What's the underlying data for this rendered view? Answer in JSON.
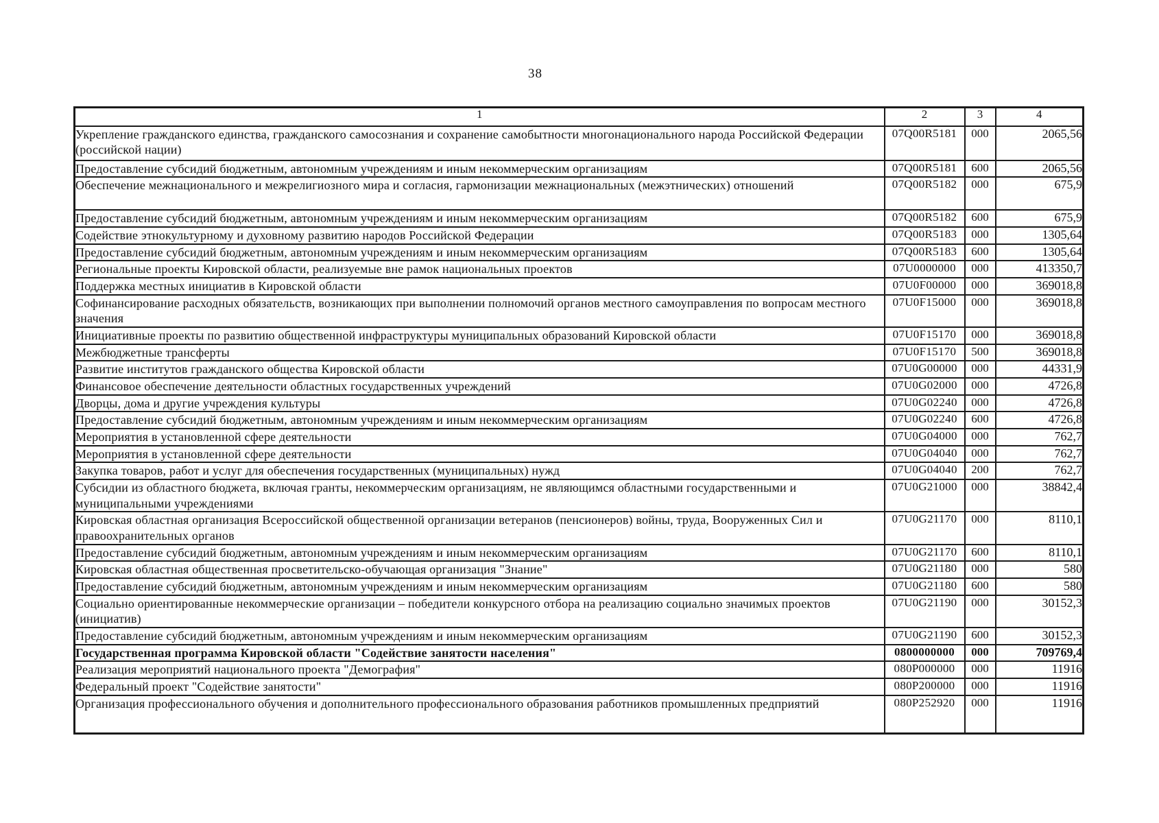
{
  "page_number": "38",
  "table": {
    "headers": [
      "1",
      "2",
      "3",
      "4"
    ],
    "rows": [
      {
        "name": "Укрепление гражданского единства, гражданского самосознания и сохранение самобытности многонационального народа Российской Федерации (российской нации)",
        "code": "07Q00R5181",
        "vr": "000",
        "amount": "2065,56"
      },
      {
        "name": "Предоставление субсидий бюджетным, автономным учреждениям и иным некоммерческим организациям",
        "code": "07Q00R5181",
        "vr": "600",
        "amount": "2065,56"
      },
      {
        "name": "Обеспечение межнационального и межрелигиозного мира и согласия, гармонизации межнациональных (межэтнических) отношений",
        "code": "07Q00R5182",
        "vr": "000",
        "amount": "675,9"
      },
      {
        "name": "Предоставление субсидий бюджетным, автономным учреждениям и иным некоммерческим организациям",
        "code": "07Q00R5182",
        "vr": "600",
        "amount": "675,9"
      },
      {
        "name": "Содействие этнокультурному и духовному развитию народов Российской Федерации",
        "code": "07Q00R5183",
        "vr": "000",
        "amount": "1305,64"
      },
      {
        "name": "Предоставление субсидий бюджетным, автономным учреждениям и иным некоммерческим организациям",
        "code": "07Q00R5183",
        "vr": "600",
        "amount": "1305,64"
      },
      {
        "name": "Региональные проекты Кировской области, реализуемые вне рамок национальных проектов",
        "code": "07U0000000",
        "vr": "000",
        "amount": "413350,7"
      },
      {
        "name": "Поддержка местных инициатив в Кировской области",
        "code": "07U0F00000",
        "vr": "000",
        "amount": "369018,8"
      },
      {
        "name": "Софинансирование расходных обязательств, возникающих при выполнении полномочий органов местного самоуправления по вопросам местного значения",
        "code": "07U0F15000",
        "vr": "000",
        "amount": "369018,8"
      },
      {
        "name": "Инициативные проекты по развитию общественной инфраструктуры муниципальных образований Кировской области",
        "code": "07U0F15170",
        "vr": "000",
        "amount": "369018,8"
      },
      {
        "name": "Межбюджетные трансферты",
        "code": "07U0F15170",
        "vr": "500",
        "amount": "369018,8"
      },
      {
        "name": "Развитие институтов гражданского общества Кировской области",
        "code": "07U0G00000",
        "vr": "000",
        "amount": "44331,9"
      },
      {
        "name": "Финансовое обеспечение деятельности областных государственных учреждений",
        "code": "07U0G02000",
        "vr": "000",
        "amount": "4726,8"
      },
      {
        "name": "Дворцы, дома и другие учреждения культуры",
        "code": "07U0G02240",
        "vr": "000",
        "amount": "4726,8"
      },
      {
        "name": "Предоставление субсидий бюджетным, автономным учреждениям и иным некоммерческим организациям",
        "code": "07U0G02240",
        "vr": "600",
        "amount": "4726,8"
      },
      {
        "name": "Мероприятия в установленной сфере деятельности",
        "code": "07U0G04000",
        "vr": "000",
        "amount": "762,7"
      },
      {
        "name": "Мероприятия в установленной сфере деятельности",
        "code": "07U0G04040",
        "vr": "000",
        "amount": "762,7"
      },
      {
        "name": "Закупка товаров, работ и услуг для обеспечения государственных (муниципальных) нужд",
        "code": "07U0G04040",
        "vr": "200",
        "amount": "762,7"
      },
      {
        "name": "Субсидии из областного бюджета, включая гранты, некоммерческим организациям, не являющимся областными государственными и муниципальными учреждениями",
        "code": "07U0G21000",
        "vr": "000",
        "amount": "38842,4"
      },
      {
        "name": "Кировская областная организация Всероссийской общественной организации ветеранов (пенсионеров) войны, труда, Вооруженных Сил и правоохранительных органов",
        "code": "07U0G21170",
        "vr": "000",
        "amount": "8110,1"
      },
      {
        "name": "Предоставление субсидий бюджетным, автономным учреждениям и иным некоммерческим организациям",
        "code": "07U0G21170",
        "vr": "600",
        "amount": "8110,1"
      },
      {
        "name": "Кировская областная общественная просветительско-обучающая организация \"Знание\"",
        "code": "07U0G21180",
        "vr": "000",
        "amount": "580"
      },
      {
        "name": "Предоставление субсидий бюджетным, автономным учреждениям и иным некоммерческим организациям",
        "code": "07U0G21180",
        "vr": "600",
        "amount": "580"
      },
      {
        "name": "Социально ориентированные некоммерческие организации – победители конкурсного отбора на реализацию социально значимых проектов (инициатив)",
        "code": "07U0G21190",
        "vr": "000",
        "amount": "30152,3"
      },
      {
        "name": "Предоставление субсидий бюджетным, автономным учреждениям и иным некоммерческим организациям",
        "code": "07U0G21190",
        "vr": "600",
        "amount": "30152,3"
      },
      {
        "name": "Государственная программа Кировской области \"Содействие занятости населения\"",
        "code": "0800000000",
        "vr": "000",
        "amount": "709769,4",
        "bold": true
      },
      {
        "name": "Реализация мероприятий национального проекта \"Демография\"",
        "code": "080P000000",
        "vr": "000",
        "amount": "11916"
      },
      {
        "name": "Федеральный проект \"Содействие занятости\"",
        "code": "080P200000",
        "vr": "000",
        "amount": "11916"
      },
      {
        "name": "Организация профессионального обучения и дополнительного профессионального образования работников промышленных предприятий",
        "code": "080P252920",
        "vr": "000",
        "amount": "11916"
      }
    ]
  }
}
